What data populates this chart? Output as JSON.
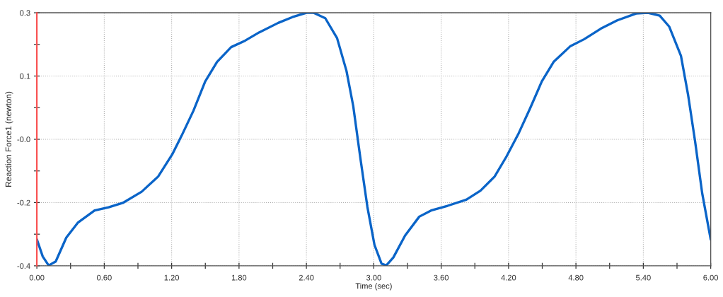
{
  "chart_data": {
    "type": "line",
    "xlabel": "Time (sec)",
    "ylabel": "Reaction Force1 (newton)",
    "x": [
      0,
      0.052,
      0.105,
      0.168,
      0.262,
      0.367,
      0.514,
      0.639,
      0.765,
      0.933,
      1.08,
      1.205,
      1.289,
      1.394,
      1.499,
      1.604,
      1.73,
      1.855,
      1.981,
      2.149,
      2.275,
      2.4,
      2.463,
      2.568,
      2.673,
      2.757,
      2.817,
      2.88,
      2.943,
      3.006,
      3.069,
      3.111,
      3.174,
      3.279,
      3.405,
      3.51,
      3.657,
      3.824,
      3.95,
      4.076,
      4.181,
      4.286,
      4.391,
      4.496,
      4.601,
      4.748,
      4.874,
      5.021,
      5.168,
      5.336,
      5.441,
      5.546,
      5.63,
      5.735,
      5.798,
      5.861,
      5.924,
      6.0
    ],
    "series": [
      {
        "color": "#0a64c8",
        "values": [
          -0.327,
          -0.374,
          -0.399,
          -0.388,
          -0.322,
          -0.28,
          -0.247,
          -0.238,
          -0.226,
          -0.195,
          -0.153,
          -0.092,
          -0.04,
          0.029,
          0.11,
          0.164,
          0.205,
          0.223,
          0.246,
          0.272,
          0.288,
          0.3,
          0.3,
          0.285,
          0.23,
          0.139,
          0.042,
          -0.101,
          -0.237,
          -0.342,
          -0.394,
          -0.399,
          -0.377,
          -0.316,
          -0.264,
          -0.247,
          -0.234,
          -0.217,
          -0.192,
          -0.153,
          -0.098,
          -0.036,
          0.035,
          0.11,
          0.164,
          0.207,
          0.227,
          0.256,
          0.279,
          0.298,
          0.3,
          0.292,
          0.262,
          0.181,
          0.074,
          -0.056,
          -0.199,
          -0.327
        ]
      }
    ],
    "xlim": [
      0,
      6
    ],
    "ylim": [
      -0.4,
      0.3
    ],
    "xticks": [
      {
        "value": 0,
        "label": "0.00"
      },
      {
        "value": 0.3,
        "label": null
      },
      {
        "value": 0.6,
        "label": "0.60"
      },
      {
        "value": 0.9,
        "label": null
      },
      {
        "value": 1.2,
        "label": "1.20"
      },
      {
        "value": 1.5,
        "label": null
      },
      {
        "value": 1.8,
        "label": "1.80"
      },
      {
        "value": 2.1,
        "label": null
      },
      {
        "value": 2.4,
        "label": "2.40"
      },
      {
        "value": 2.7,
        "label": null
      },
      {
        "value": 3.0,
        "label": "3.00"
      },
      {
        "value": 3.3,
        "label": null
      },
      {
        "value": 3.6,
        "label": "3.60"
      },
      {
        "value": 3.9,
        "label": null
      },
      {
        "value": 4.2,
        "label": "4.20"
      },
      {
        "value": 4.5,
        "label": null
      },
      {
        "value": 4.8,
        "label": "4.80"
      },
      {
        "value": 5.1,
        "label": null
      },
      {
        "value": 5.4,
        "label": "5.40"
      },
      {
        "value": 5.7,
        "label": null
      },
      {
        "value": 6.0,
        "label": "6.00"
      }
    ],
    "yticks": [
      {
        "value": -0.4,
        "label": "-0.4"
      },
      {
        "value": -0.3125,
        "label": null
      },
      {
        "value": -0.225,
        "label": "-0.2"
      },
      {
        "value": -0.1375,
        "label": null
      },
      {
        "value": -0.05,
        "label": "-0.0"
      },
      {
        "value": 0.0375,
        "label": null
      },
      {
        "value": 0.125,
        "label": "0.1"
      },
      {
        "value": 0.2125,
        "label": null
      },
      {
        "value": 0.3,
        "label": "0.3"
      }
    ],
    "ref_lines": [
      {
        "axis": "x",
        "value": 0,
        "color": "#ff5050"
      }
    ],
    "grid": true,
    "legend": false,
    "marker": "none",
    "line_style": "solid"
  }
}
